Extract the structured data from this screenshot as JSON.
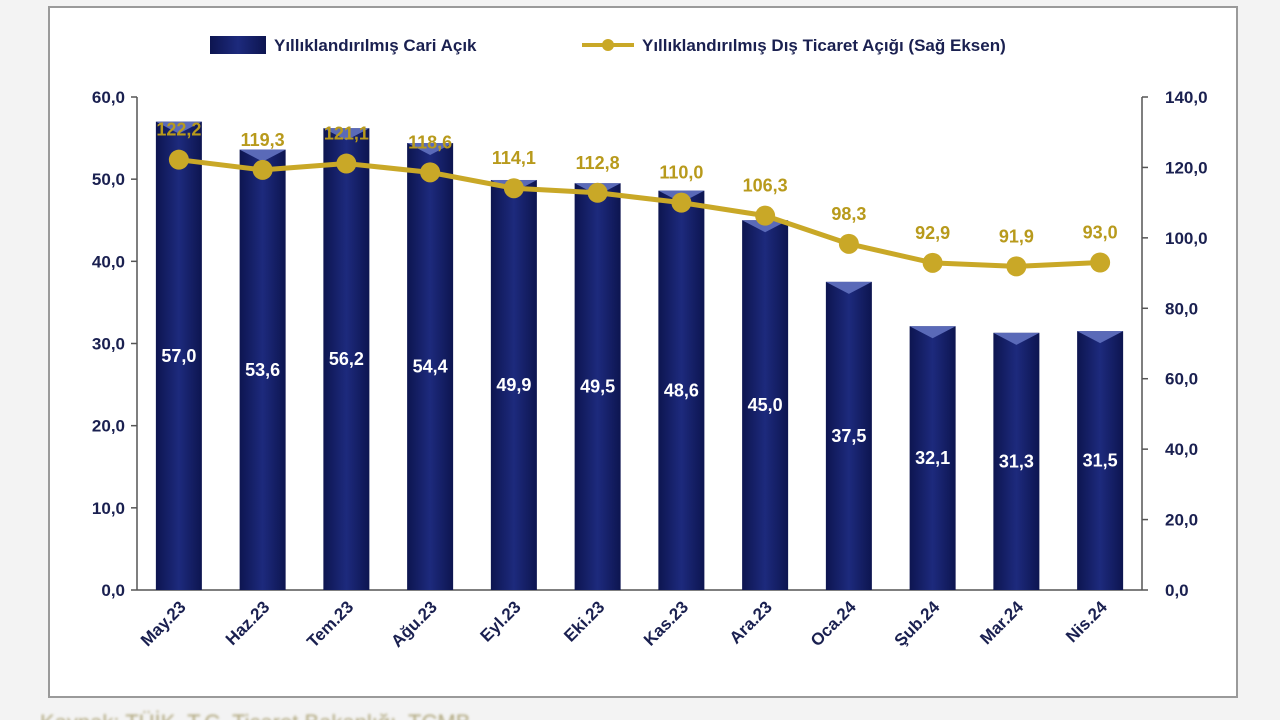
{
  "chart_data": {
    "type": "bar+line",
    "categories": [
      "May.23",
      "Haz.23",
      "Tem.23",
      "Ağu.23",
      "Eyl.23",
      "Eki.23",
      "Kas.23",
      "Ara.23",
      "Oca.24",
      "Şub.24",
      "Mar.24",
      "Nis.24"
    ],
    "series": [
      {
        "name": "Yıllıklandırılmış Cari Açık",
        "type": "bar",
        "axis": "left",
        "values": [
          57.0,
          53.6,
          56.2,
          54.4,
          49.9,
          49.5,
          48.6,
          45.0,
          37.5,
          32.1,
          31.3,
          31.5
        ],
        "labels": [
          "57,0",
          "53,6",
          "56,2",
          "54,4",
          "49,9",
          "49,5",
          "48,6",
          "45,0",
          "37,5",
          "32,1",
          "31,3",
          "31,5"
        ]
      },
      {
        "name": "Yıllıklandırılmış Dış Ticaret Açığı (Sağ Eksen)",
        "type": "line",
        "axis": "right",
        "values": [
          122.2,
          119.3,
          121.1,
          118.6,
          114.1,
          112.8,
          110.0,
          106.3,
          98.3,
          92.9,
          91.9,
          93.0
        ],
        "labels": [
          "122,2",
          "119,3",
          "121,1",
          "118,6",
          "114,1",
          "112,8",
          "110,0",
          "106,3",
          "98,3",
          "92,9",
          "91,9",
          "93,0"
        ]
      }
    ],
    "ylim_left": [
      0,
      60
    ],
    "ylim_right": [
      0,
      140
    ],
    "yticks_left": [
      "0,0",
      "10,0",
      "20,0",
      "30,0",
      "40,0",
      "50,0",
      "60,0"
    ],
    "yticks_right": [
      "0,0",
      "20,0",
      "40,0",
      "60,0",
      "80,0",
      "100,0",
      "120,0",
      "140,0"
    ],
    "grid": false,
    "legend_position": "top",
    "colors": {
      "bar": "#16206a",
      "bar_top": "#5a6ab8",
      "line": "#c9a827"
    }
  },
  "source_text": "Kaynak: TÜİK, T.C. Ticaret Bakanlığı, TCMB"
}
